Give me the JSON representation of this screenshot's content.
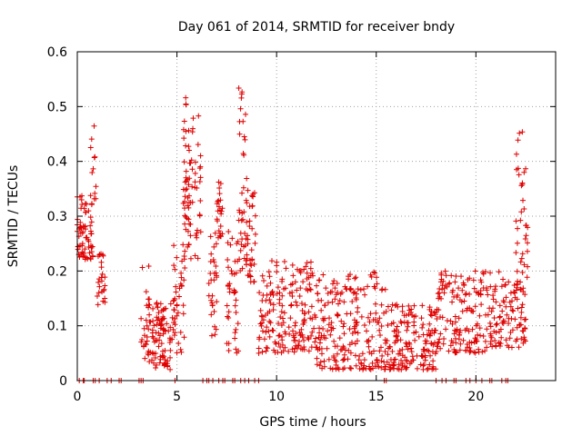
{
  "chart_data": {
    "type": "scatter",
    "title": "Day 061 of 2014, SRMTID for receiver bndy",
    "xlabel": "GPS time / hours",
    "ylabel": "SRMTID / TECUs",
    "xlim": [
      0,
      24
    ],
    "ylim": [
      0,
      0.6
    ],
    "xticks": [
      0,
      5,
      10,
      15,
      20
    ],
    "yticks": [
      0,
      0.1,
      0.2,
      0.3,
      0.4,
      0.5,
      0.6
    ],
    "ytick_labels": [
      "0",
      "0.1",
      "0.2",
      "0.3",
      "0.4",
      "0.5",
      "0.6"
    ],
    "grid": true,
    "marker": "+",
    "color": "#e00000",
    "series": [
      {
        "name": "SRMTID",
        "segments": [
          {
            "t0": 0.0,
            "t1": 0.4,
            "lo": 0.22,
            "hi": 0.34,
            "n": 40
          },
          {
            "t0": 0.4,
            "t1": 0.8,
            "lo": 0.22,
            "hi": 0.33,
            "n": 30
          },
          {
            "t0": 0.6,
            "t1": 0.95,
            "lo": 0.33,
            "hi": 0.47,
            "n": 12
          },
          {
            "t0": 1.0,
            "t1": 1.4,
            "lo": 0.12,
            "hi": 0.27,
            "n": 25
          },
          {
            "t0": 3.2,
            "t1": 3.6,
            "lo": 0.04,
            "hi": 0.21,
            "n": 25
          },
          {
            "t0": 3.6,
            "t1": 4.8,
            "lo": 0.02,
            "hi": 0.15,
            "n": 90
          },
          {
            "t0": 4.8,
            "t1": 5.4,
            "lo": 0.05,
            "hi": 0.25,
            "n": 40
          },
          {
            "t0": 5.3,
            "t1": 6.2,
            "lo": 0.22,
            "hi": 0.52,
            "n": 80
          },
          {
            "t0": 6.6,
            "t1": 7.0,
            "lo": 0.08,
            "hi": 0.27,
            "n": 30
          },
          {
            "t0": 7.0,
            "t1": 7.3,
            "lo": 0.26,
            "hi": 0.38,
            "n": 25
          },
          {
            "t0": 7.5,
            "t1": 8.1,
            "lo": 0.05,
            "hi": 0.28,
            "n": 40
          },
          {
            "t0": 8.1,
            "t1": 8.5,
            "lo": 0.2,
            "hi": 0.55,
            "n": 40
          },
          {
            "t0": 8.5,
            "t1": 9.0,
            "lo": 0.18,
            "hi": 0.35,
            "n": 35
          },
          {
            "t0": 9.1,
            "t1": 12.0,
            "lo": 0.05,
            "hi": 0.22,
            "n": 180
          },
          {
            "t0": 12.0,
            "t1": 15.5,
            "lo": 0.02,
            "hi": 0.2,
            "n": 220
          },
          {
            "t0": 15.5,
            "t1": 18.0,
            "lo": 0.02,
            "hi": 0.14,
            "n": 160
          },
          {
            "t0": 18.0,
            "t1": 20.5,
            "lo": 0.05,
            "hi": 0.2,
            "n": 150
          },
          {
            "t0": 20.5,
            "t1": 22.5,
            "lo": 0.06,
            "hi": 0.2,
            "n": 110
          },
          {
            "t0": 22.0,
            "t1": 22.6,
            "lo": 0.16,
            "hi": 0.46,
            "n": 40
          }
        ],
        "zeros": [
          0.1,
          0.3,
          0.35,
          0.8,
          0.9,
          1.1,
          1.5,
          1.7,
          2.1,
          2.2,
          3.1,
          3.2,
          3.3,
          4.9,
          6.3,
          6.5,
          6.6,
          6.8,
          7.1,
          7.3,
          7.4,
          7.8,
          7.9,
          8.2,
          8.4,
          8.6,
          8.9,
          9.1,
          15.4,
          15.5,
          18.0,
          18.3,
          18.5,
          18.9,
          19.0,
          19.5,
          19.7,
          20.0,
          20.3,
          20.7,
          20.8,
          21.3,
          21.5,
          21.6
        ]
      }
    ]
  }
}
